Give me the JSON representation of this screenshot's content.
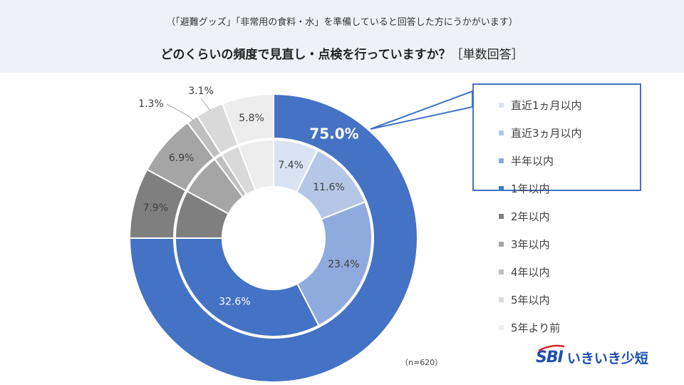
{
  "header": {
    "subtitle": "（「避難グッズ」「非常用の食料・水」を準備していると回答した方にうかがいます）",
    "title": "どのくらいの頻度で見直し・点検を行っていますか？",
    "title_tag": "［単数回答］"
  },
  "chart_data": {
    "type": "donut",
    "title": "どのくらいの頻度で見直し・点検を行っていますか？",
    "n_label": "（n=620）",
    "categories": [
      "直近1ヵ月以内",
      "直近3ヵ月以内",
      "半年以内",
      "1年以内",
      "2年以内",
      "3年以内",
      "4年以内",
      "5年以内",
      "5年より前"
    ],
    "colors": [
      "#dae3f3",
      "#b4c7e7",
      "#8faadc",
      "#4472c4",
      "#7f7f7f",
      "#a5a5a5",
      "#bfbfbf",
      "#d9d9d9",
      "#ededed"
    ],
    "inner_ring": {
      "values": [
        7.4,
        11.6,
        23.4,
        32.6
      ],
      "labels": [
        "7.4%",
        "11.6%",
        "23.4%",
        "32.6%"
      ],
      "rest": 25.0
    },
    "outer_ring": {
      "values": [
        75.0,
        7.9,
        6.9,
        1.3,
        3.1,
        5.8
      ],
      "labels": [
        "75.0%",
        "7.9%",
        "6.9%",
        "1.3%",
        "3.1%",
        "5.8%"
      ],
      "category_index": [
        3,
        4,
        5,
        6,
        7,
        8
      ]
    },
    "highlight_categories": [
      "直近1ヵ月以内",
      "直近3ヵ月以内",
      "半年以内",
      "1年以内"
    ]
  },
  "legend": {
    "items": [
      {
        "label": "直近1ヵ月以内",
        "color": "#dae3f3"
      },
      {
        "label": "直近3ヵ月以内",
        "color": "#b4c7e7"
      },
      {
        "label": "半年以内",
        "color": "#8faadc"
      },
      {
        "label": "1年以内",
        "color": "#4472c4"
      },
      {
        "label": "2年以内",
        "color": "#7f7f7f"
      },
      {
        "label": "3年以内",
        "color": "#a5a5a5"
      },
      {
        "label": "4年以内",
        "color": "#bfbfbf"
      },
      {
        "label": "5年以内",
        "color": "#d9d9d9"
      },
      {
        "label": "5年より前",
        "color": "#ededed"
      }
    ]
  },
  "footer": {
    "n_note": "（n=620）",
    "logo_mark": "SBI",
    "logo_text": "いきいき少短",
    "brand_color": "#1c4fb0"
  }
}
